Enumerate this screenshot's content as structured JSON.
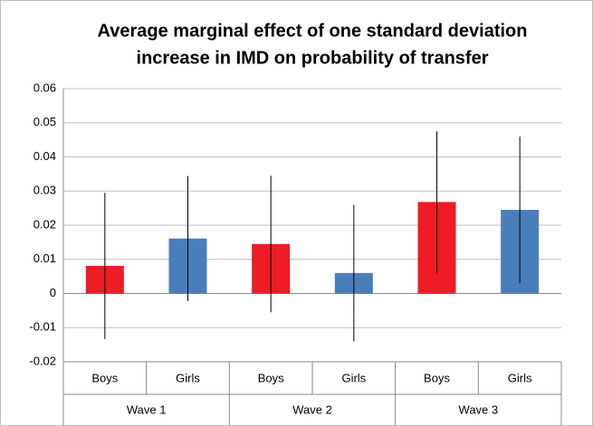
{
  "chart_data": {
    "type": "bar",
    "title": [
      "Average marginal effect of one standard deviation",
      "increase in IMD on probability of transfer"
    ],
    "categories": [
      "Boys",
      "Girls",
      "Boys",
      "Girls",
      "Boys",
      "Girls"
    ],
    "groups": [
      "Wave 1",
      "Wave 2",
      "Wave 3"
    ],
    "values": [
      0.0081,
      0.0161,
      0.0145,
      0.006,
      0.0268,
      0.0245
    ],
    "errors": [
      0.0214,
      0.0183,
      0.02,
      0.02,
      0.0207,
      0.0215
    ],
    "colors": [
      "#ee1c24",
      "#4a7ebb",
      "#ee1c24",
      "#4a7ebb",
      "#ee1c24",
      "#4a7ebb"
    ],
    "ylim": [
      -0.02,
      0.06
    ],
    "yticks": [
      -0.02,
      -0.01,
      0,
      0.01,
      0.02,
      0.03,
      0.04,
      0.05,
      0.06
    ],
    "grid": true
  }
}
